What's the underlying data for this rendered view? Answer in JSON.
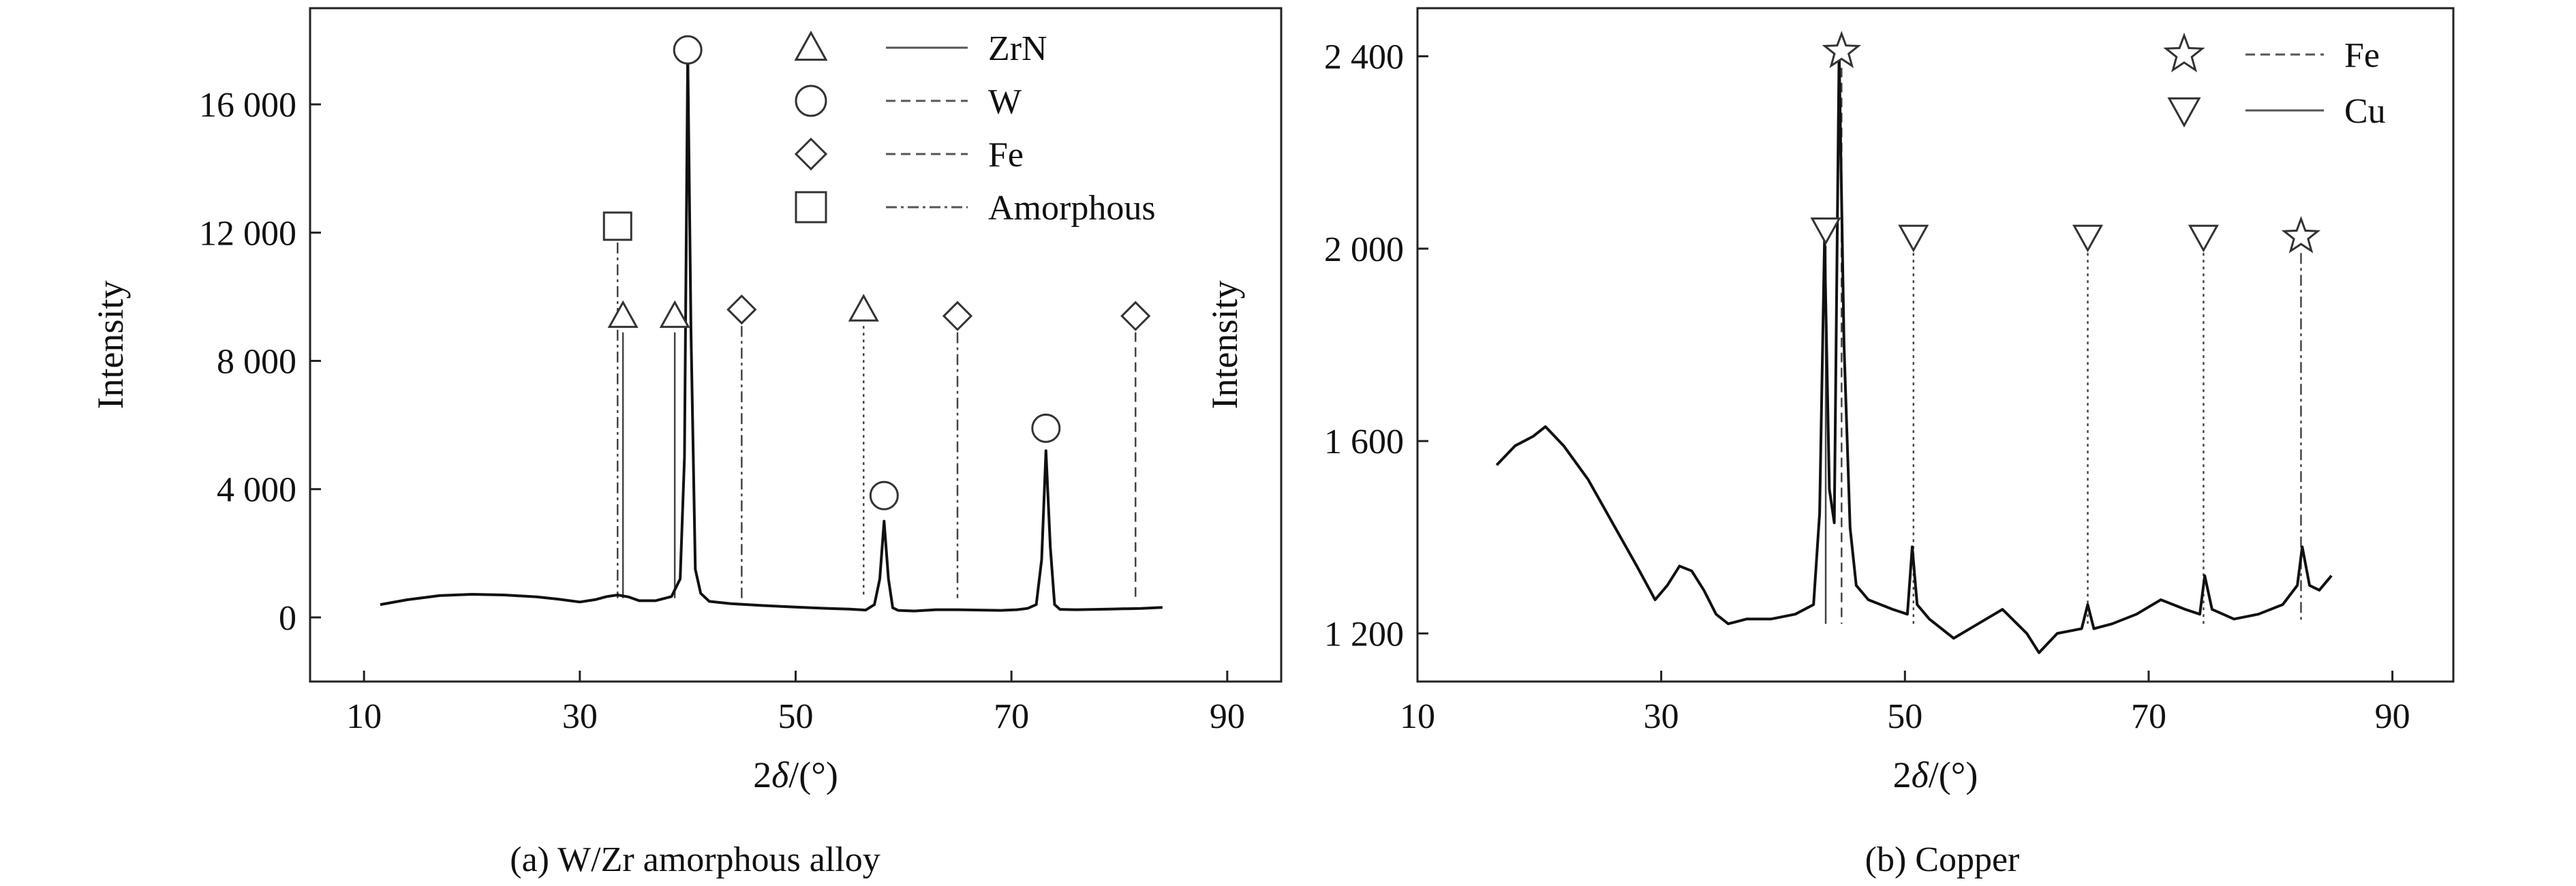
{
  "chart_data": [
    {
      "type": "line",
      "caption": "(a) W/Zr amorphous alloy",
      "xlabel_prefix": "2",
      "xlabel_symbol": "δ",
      "xlabel_suffix": "/(°)",
      "ylabel": "Intensity",
      "xlim": [
        5,
        95
      ],
      "ylim": [
        -2000,
        19000
      ],
      "xticks": [
        10,
        30,
        50,
        70,
        90
      ],
      "xtick_labels": [
        "10",
        "30",
        "50",
        "70",
        "90"
      ],
      "yticks": [
        0,
        4000,
        8000,
        12000,
        16000
      ],
      "ytick_labels": [
        "0",
        "4 000",
        "8 000",
        "12 000",
        "16 000"
      ],
      "grid": false,
      "legend_position": "top-right",
      "legend": [
        {
          "label": "ZrN",
          "marker": "triangle-up",
          "line": "solid"
        },
        {
          "label": "W",
          "marker": "circle",
          "line": "dashed"
        },
        {
          "label": "Fe",
          "marker": "diamond",
          "line": "dashed"
        },
        {
          "label": "Amorphous",
          "marker": "square",
          "line": "dash-dot"
        }
      ],
      "series": [
        {
          "x": [
            11.5,
            14,
            17,
            20,
            23,
            26,
            28,
            30,
            31.5,
            32.5,
            33.5,
            34.5,
            35.5,
            37,
            38.5,
            39.3,
            39.7,
            40.0,
            40.3,
            40.7,
            41.2,
            42,
            44,
            47,
            50,
            53,
            55,
            56.5,
            57.3,
            57.8,
            58.2,
            58.6,
            59.0,
            59.5,
            61,
            63,
            65,
            67,
            69,
            70.5,
            71.5,
            72.3,
            72.8,
            73.2,
            73.6,
            74.0,
            74.5,
            76,
            79,
            82,
            84
          ],
          "y": [
            400,
            550,
            680,
            720,
            700,
            640,
            570,
            480,
            560,
            650,
            700,
            640,
            520,
            520,
            650,
            1200,
            5000,
            17600,
            9000,
            1500,
            750,
            500,
            430,
            370,
            320,
            280,
            260,
            230,
            400,
            1200,
            3000,
            1200,
            300,
            220,
            200,
            240,
            240,
            230,
            220,
            240,
            280,
            400,
            1800,
            5200,
            2200,
            400,
            250,
            240,
            260,
            280,
            310
          ]
        }
      ],
      "peaks": [
        {
          "x": 33.5,
          "marker": "square",
          "marker_y": 12200,
          "line": "dash-dot"
        },
        {
          "x": 34.0,
          "marker": "triangle-up",
          "marker_y": 9400,
          "line": "solid"
        },
        {
          "x": 38.8,
          "marker": "triangle-up",
          "marker_y": 9400,
          "line": "solid"
        },
        {
          "x": 40.0,
          "marker": "circle",
          "marker_y": 17700,
          "line": "none"
        },
        {
          "x": 45.0,
          "marker": "diamond",
          "marker_y": 9600,
          "line": "dash-dot"
        },
        {
          "x": 56.3,
          "marker": "triangle-up",
          "marker_y": 9600,
          "line": "dotted"
        },
        {
          "x": 58.2,
          "marker": "circle",
          "marker_y": 3800,
          "line": "none"
        },
        {
          "x": 65.0,
          "marker": "diamond",
          "marker_y": 9400,
          "line": "dash-dot"
        },
        {
          "x": 73.2,
          "marker": "circle",
          "marker_y": 5900,
          "line": "none"
        },
        {
          "x": 81.5,
          "marker": "diamond",
          "marker_y": 9400,
          "line": "dashed"
        }
      ]
    },
    {
      "type": "line",
      "caption": "(b) Copper",
      "xlabel_prefix": "2",
      "xlabel_symbol": "δ",
      "xlabel_suffix": "/(°)",
      "ylabel": "Intensity",
      "xlim": [
        10,
        95
      ],
      "ylim": [
        1100,
        2500
      ],
      "xticks": [
        10,
        30,
        50,
        70,
        90
      ],
      "xtick_labels": [
        "10",
        "30",
        "50",
        "70",
        "90"
      ],
      "yticks": [
        1200,
        1600,
        2000,
        2400
      ],
      "ytick_labels": [
        "1 200",
        "1 600",
        "2 000",
        "2 400"
      ],
      "grid": false,
      "legend_position": "top-right",
      "legend": [
        {
          "label": "Fe",
          "marker": "star",
          "line": "dashed"
        },
        {
          "label": "Cu",
          "marker": "triangle-down",
          "line": "solid"
        }
      ],
      "series": [
        {
          "x": [
            16.5,
            18,
            19.5,
            20.5,
            22,
            24,
            26,
            28,
            29.5,
            30.5,
            31.5,
            32.5,
            33.5,
            34.5,
            35.5,
            37,
            39,
            41,
            42.5,
            43.0,
            43.4,
            43.8,
            44.2,
            44.6,
            45.0,
            45.5,
            46.0,
            47,
            49,
            50.2,
            50.6,
            51.0,
            52,
            54,
            56,
            58,
            60,
            61,
            62.5,
            64.5,
            65.0,
            65.5,
            67,
            69,
            71,
            73,
            74.2,
            74.6,
            75.2,
            77,
            79,
            81,
            82.2,
            82.6,
            83.2,
            84,
            85
          ],
          "y": [
            1550,
            1590,
            1610,
            1630,
            1590,
            1520,
            1430,
            1340,
            1270,
            1300,
            1340,
            1330,
            1290,
            1240,
            1220,
            1230,
            1230,
            1240,
            1260,
            1450,
            2020,
            1500,
            1430,
            2410,
            1800,
            1420,
            1300,
            1270,
            1250,
            1240,
            1380,
            1260,
            1230,
            1190,
            1220,
            1250,
            1200,
            1160,
            1200,
            1210,
            1260,
            1210,
            1220,
            1240,
            1270,
            1250,
            1240,
            1320,
            1250,
            1230,
            1240,
            1260,
            1300,
            1380,
            1300,
            1290,
            1320
          ]
        }
      ],
      "peaks": [
        {
          "x": 43.5,
          "marker": "triangle-down",
          "marker_y": 2040,
          "line": "solid"
        },
        {
          "x": 44.8,
          "marker": "star",
          "marker_y": 2410,
          "line": "dashed"
        },
        {
          "x": 50.7,
          "marker": "triangle-down",
          "marker_y": 2025,
          "line": "dotted"
        },
        {
          "x": 65.0,
          "marker": "triangle-down",
          "marker_y": 2025,
          "line": "dotted"
        },
        {
          "x": 74.5,
          "marker": "triangle-down",
          "marker_y": 2025,
          "line": "dotted"
        },
        {
          "x": 82.5,
          "marker": "star",
          "marker_y": 2025,
          "line": "dash-dot"
        }
      ]
    }
  ]
}
